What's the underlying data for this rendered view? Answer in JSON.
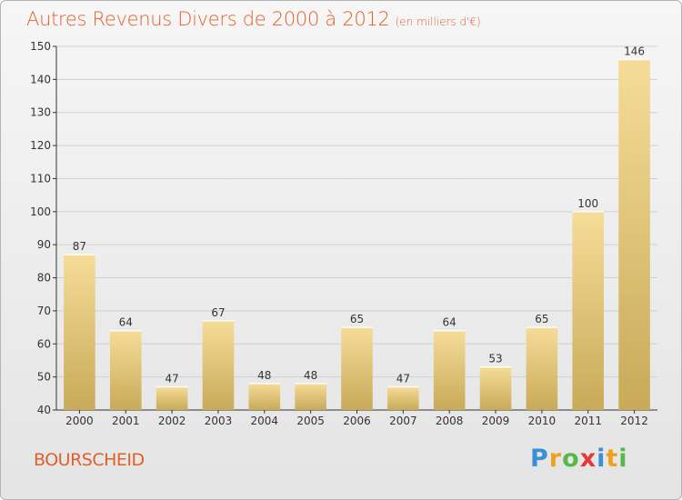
{
  "title": "Autres Revenus Divers de 2000 à 2012",
  "subtitle": "(en milliers d'€)",
  "commune": "BOURSCHEID",
  "logo": {
    "letters": [
      "P",
      "r",
      "o",
      "x",
      "i",
      "t",
      "i"
    ],
    "colors": [
      "#3a8fd6",
      "#f0a11c",
      "#58b848",
      "#e23a3a",
      "#3a8fd6",
      "#f0a11c",
      "#58b848"
    ]
  },
  "colors": {
    "title": "#e0602c",
    "bar_light": "#f5dc98",
    "bar_dark": "#c8aa58",
    "grid": "#d0d0d0"
  },
  "chart_data": {
    "type": "bar",
    "title": "Autres Revenus Divers de 2000 à 2012",
    "subtitle": "(en milliers d'€)",
    "categories": [
      "2000",
      "2001",
      "2002",
      "2003",
      "2004",
      "2005",
      "2006",
      "2007",
      "2008",
      "2009",
      "2010",
      "2011",
      "2012"
    ],
    "values": [
      87,
      64,
      47,
      67,
      48,
      48,
      65,
      47,
      64,
      53,
      65,
      100,
      146
    ],
    "ylim": [
      40,
      150
    ],
    "yticks": [
      40,
      50,
      60,
      70,
      80,
      90,
      100,
      110,
      120,
      130,
      140,
      150
    ],
    "grid": true
  }
}
